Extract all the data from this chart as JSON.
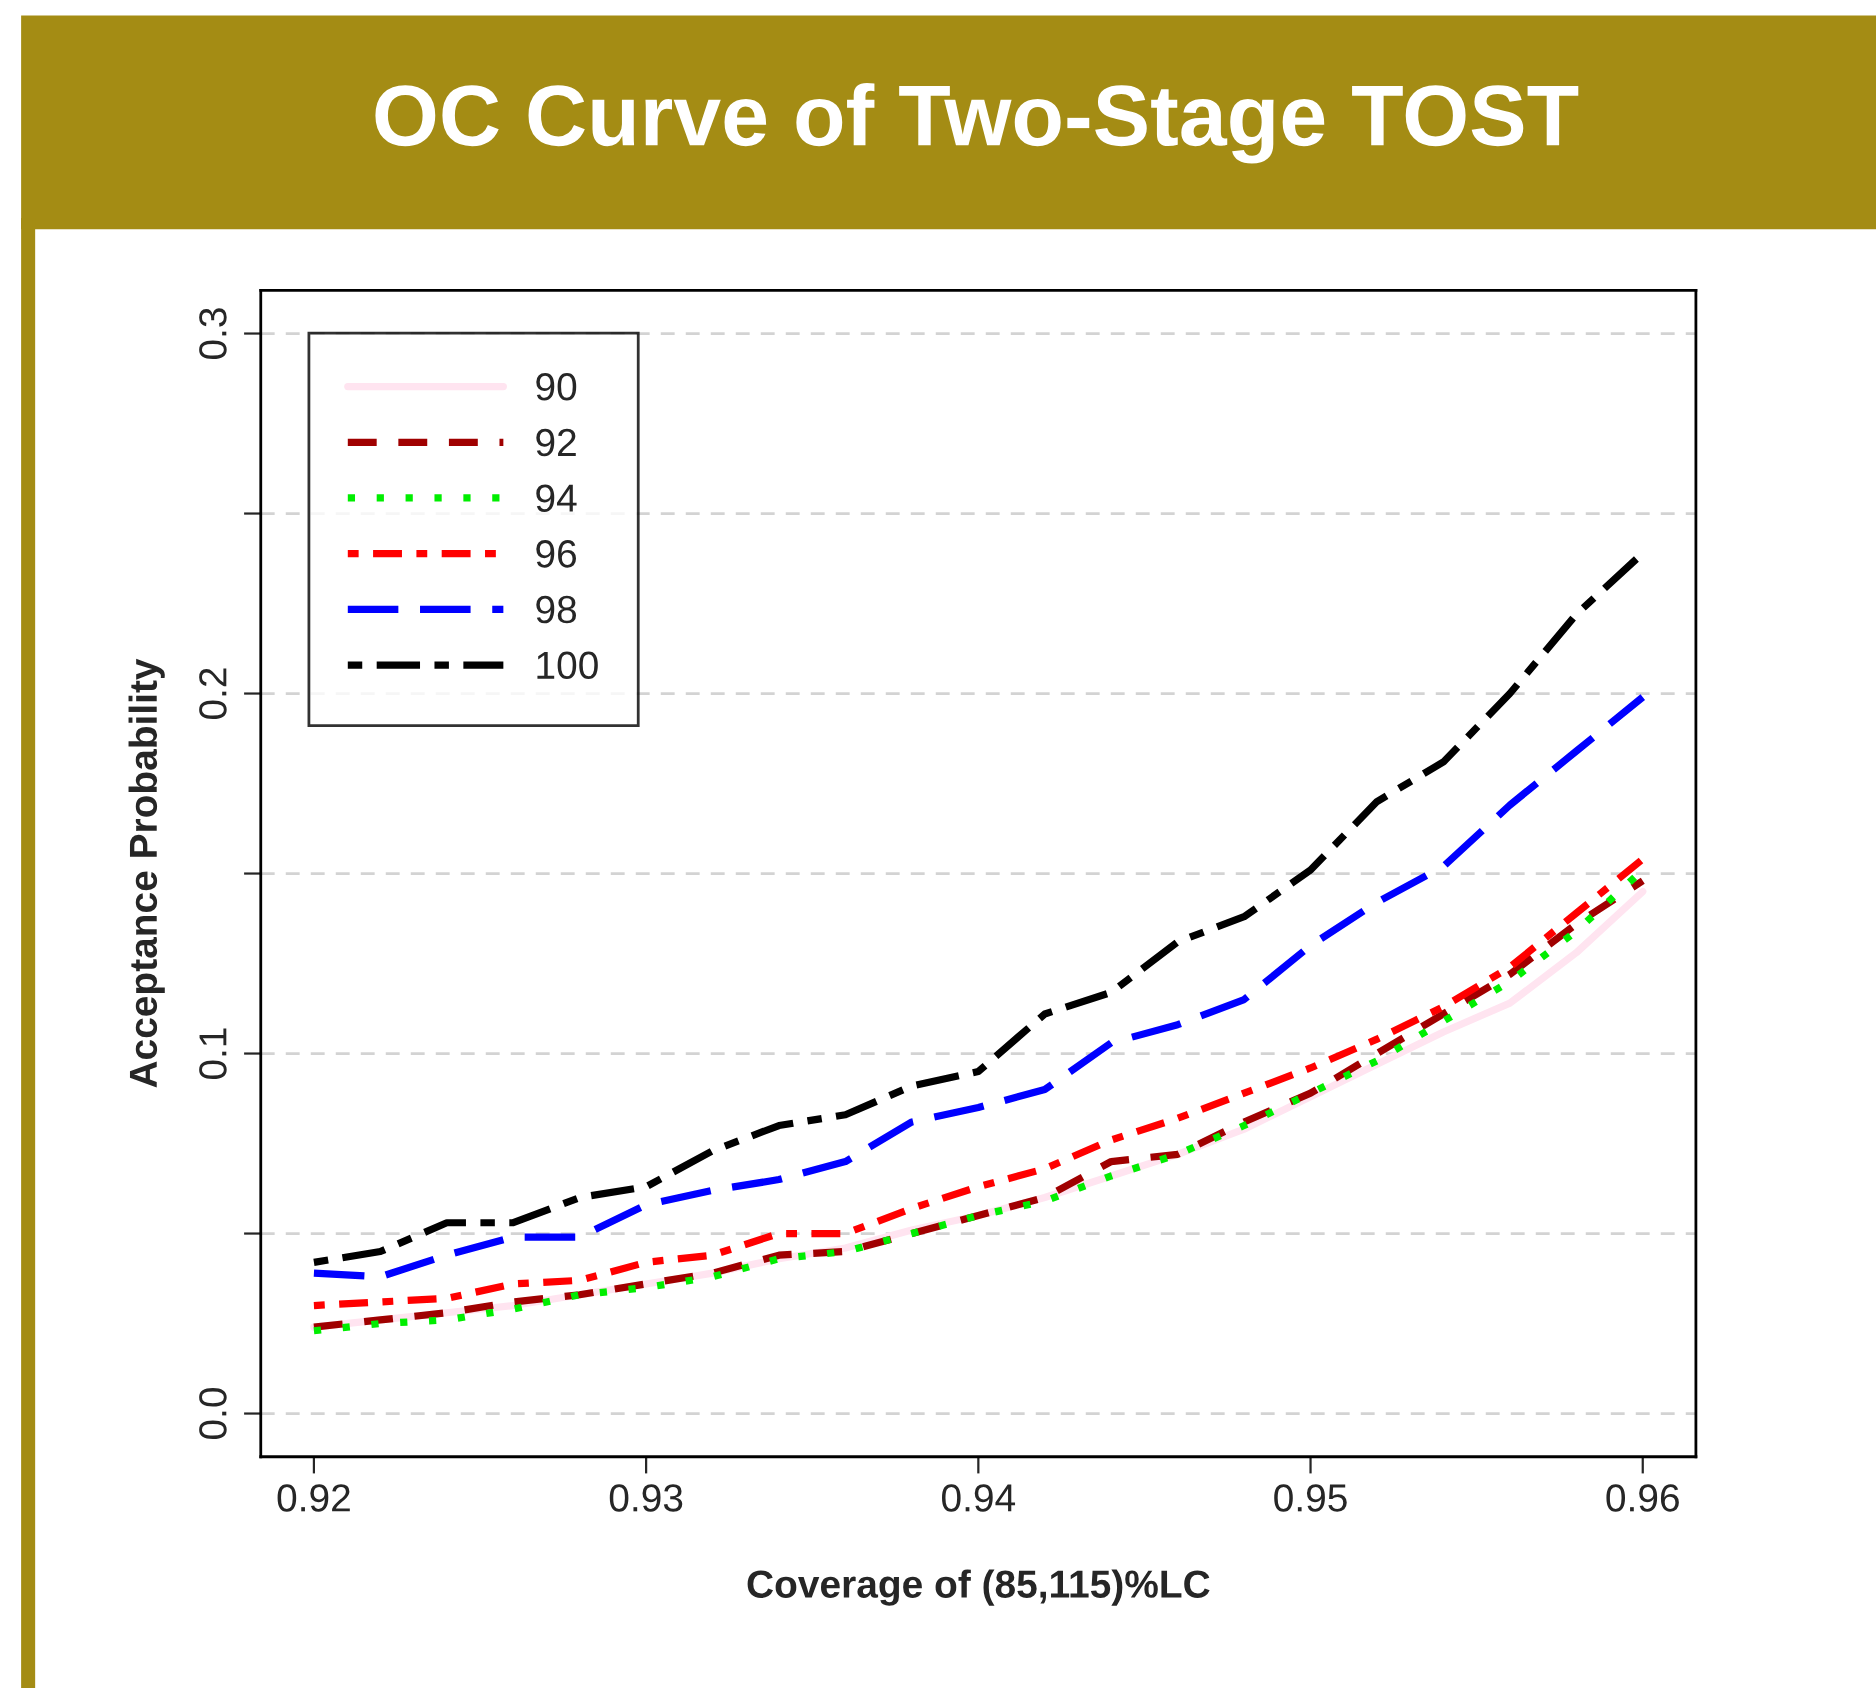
{
  "chart_data": {
    "type": "line",
    "title": "OC Curve of Two-Stage TOST",
    "xlabel": "Coverage of (85,115)%LC",
    "ylabel": "Acceptance Probability",
    "x": [
      0.92,
      0.922,
      0.924,
      0.926,
      0.928,
      0.93,
      0.932,
      0.934,
      0.936,
      0.938,
      0.94,
      0.942,
      0.944,
      0.946,
      0.948,
      0.95,
      0.952,
      0.954,
      0.956,
      0.958,
      0.96
    ],
    "series": [
      {
        "name": "90",
        "color": "#ffe4f0",
        "line_style": "solid",
        "values": [
          0.024,
          0.026,
          0.028,
          0.03,
          0.033,
          0.036,
          0.039,
          0.043,
          0.046,
          0.051,
          0.055,
          0.06,
          0.066,
          0.072,
          0.079,
          0.088,
          0.097,
          0.106,
          0.114,
          0.128,
          0.145
        ]
      },
      {
        "name": "92",
        "color": "#a00000",
        "line_style": "dashed",
        "values": [
          0.024,
          0.026,
          0.028,
          0.031,
          0.033,
          0.036,
          0.039,
          0.044,
          0.045,
          0.05,
          0.055,
          0.06,
          0.07,
          0.072,
          0.081,
          0.089,
          0.1,
          0.111,
          0.122,
          0.136,
          0.148
        ]
      },
      {
        "name": "94",
        "color": "#00ee00",
        "line_style": "dotted",
        "values": [
          0.023,
          0.025,
          0.026,
          0.029,
          0.033,
          0.035,
          0.038,
          0.043,
          0.045,
          0.05,
          0.055,
          0.059,
          0.066,
          0.072,
          0.08,
          0.089,
          0.098,
          0.109,
          0.12,
          0.134,
          0.151
        ]
      },
      {
        "name": "96",
        "color": "#ff0000",
        "line_style": "dashdot",
        "values": [
          0.03,
          0.031,
          0.032,
          0.036,
          0.037,
          0.042,
          0.044,
          0.05,
          0.05,
          0.057,
          0.063,
          0.068,
          0.076,
          0.082,
          0.089,
          0.096,
          0.104,
          0.113,
          0.124,
          0.139,
          0.154
        ]
      },
      {
        "name": "98",
        "color": "#0000ff",
        "line_style": "longdash",
        "values": [
          0.039,
          0.038,
          0.044,
          0.049,
          0.049,
          0.058,
          0.062,
          0.065,
          0.07,
          0.081,
          0.085,
          0.09,
          0.103,
          0.108,
          0.115,
          0.13,
          0.142,
          0.152,
          0.169,
          0.184,
          0.199
        ]
      },
      {
        "name": "100",
        "color": "#000000",
        "line_style": "twodash",
        "values": [
          0.042,
          0.045,
          0.053,
          0.053,
          0.06,
          0.063,
          0.073,
          0.08,
          0.083,
          0.091,
          0.095,
          0.111,
          0.117,
          0.131,
          0.138,
          0.151,
          0.17,
          0.181,
          0.2,
          0.222,
          0.239
        ]
      }
    ],
    "xlim": [
      0.9184,
      0.9616
    ],
    "ylim": [
      -0.012,
      0.312
    ],
    "xticks": [
      0.92,
      0.93,
      0.94,
      0.95,
      0.96
    ],
    "yticks": [
      {
        "value": 0.0,
        "label": "0.0"
      },
      {
        "value": 0.05,
        "label": null
      },
      {
        "value": 0.1,
        "label": "0.1"
      },
      {
        "value": 0.15,
        "label": null
      },
      {
        "value": 0.2,
        "label": "0.2"
      },
      {
        "value": 0.25,
        "label": null
      },
      {
        "value": 0.3,
        "label": "0.3"
      }
    ],
    "grid": "y",
    "legend": "top left"
  }
}
